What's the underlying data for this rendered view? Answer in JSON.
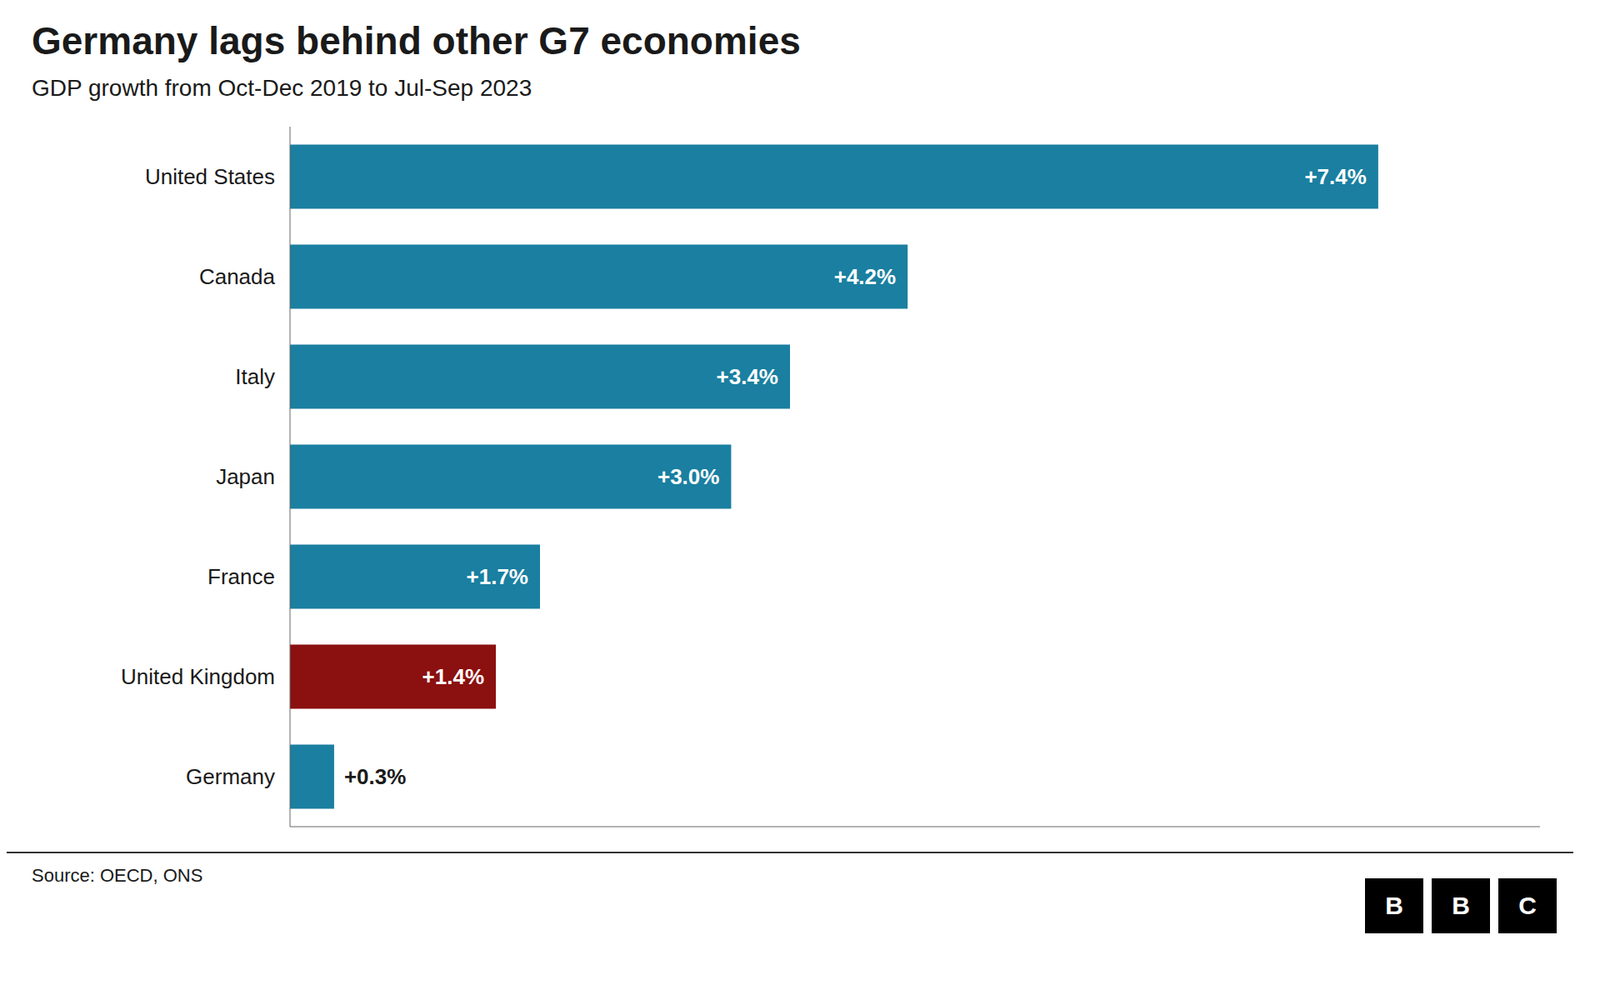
{
  "chart_data": {
    "type": "bar",
    "orientation": "horizontal",
    "title": "Germany lags behind other G7 economies",
    "subtitle": "GDP growth from Oct-Dec 2019 to Jul-Sep 2023",
    "annotations": [
      "Source: OECD, ONS",
      "B",
      "B",
      "C"
    ],
    "categories": [
      "United States",
      "Canada",
      "Italy",
      "Japan",
      "France",
      "United Kingdom",
      "Germany"
    ],
    "values": [
      7.4,
      4.2,
      3.4,
      3.0,
      1.7,
      1.4,
      0.3
    ],
    "value_labels": [
      "+7.4%",
      "+4.2%",
      "+3.4%",
      "+3.0%",
      "+1.7%",
      "+1.4%",
      "+0.3%"
    ],
    "data_labels": true,
    "colors": [
      "#1a7fa0",
      "#1a7fa0",
      "#1a7fa0",
      "#1a7fa0",
      "#1a7fa0",
      "#8b1010",
      "#1a7fa0"
    ],
    "xlim": [
      0,
      8.5
    ],
    "xticks": [],
    "tick_labels": "y",
    "grid": false
  }
}
